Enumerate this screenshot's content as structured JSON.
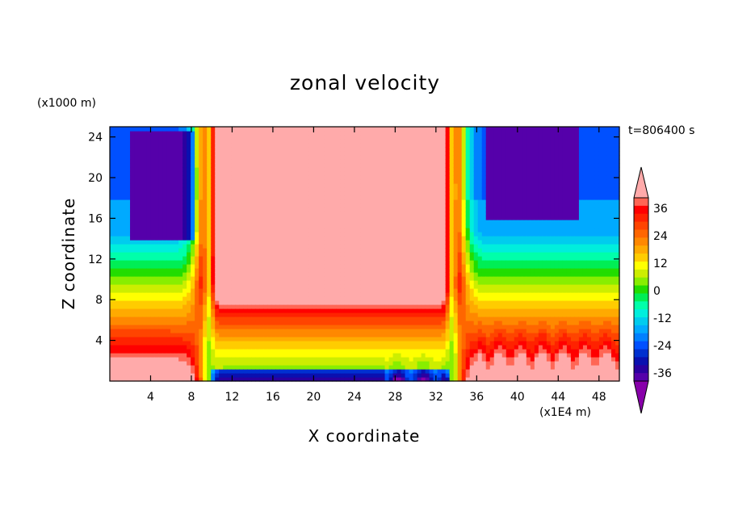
{
  "chart_data": {
    "type": "heatmap",
    "title": "zonal velocity",
    "xlabel": "X coordinate",
    "ylabel": "Z coordinate",
    "x_unit": "(x1E4 m)",
    "y_unit": "(x1000 m)",
    "time_label": "t=806400 s",
    "xlim": [
      0,
      50
    ],
    "ylim": [
      0,
      25
    ],
    "x_ticks": [
      4,
      8,
      12,
      16,
      20,
      24,
      28,
      32,
      36,
      40,
      44,
      48
    ],
    "y_ticks": [
      4,
      8,
      12,
      16,
      20,
      24
    ],
    "colorbar": {
      "levels": [
        -42,
        -39,
        -36,
        -33,
        -30,
        -27,
        -24,
        -21,
        -18,
        -15,
        -12,
        -9,
        -6,
        -3,
        0,
        3,
        6,
        9,
        12,
        15,
        18,
        21,
        24,
        27,
        30,
        33,
        36,
        39
      ],
      "tick_labels": [
        "36",
        "24",
        "12",
        "0",
        "-12",
        "-24",
        "-36"
      ],
      "extend": "both"
    },
    "colors": [
      "#8800aa",
      "#5500aa",
      "#2a00a0",
      "#0a10b0",
      "#0030d0",
      "#0050ff",
      "#0080ff",
      "#00aaff",
      "#00ccee",
      "#00eedd",
      "#00ffaa",
      "#00ee55",
      "#22dd00",
      "#88ee00",
      "#ccee00",
      "#ffff00",
      "#ffcc00",
      "#ffaa00",
      "#ff8800",
      "#ff6600",
      "#ff4400",
      "#ff2200",
      "#ff0000",
      "#ff6655",
      "#ffaaaa"
    ]
  }
}
